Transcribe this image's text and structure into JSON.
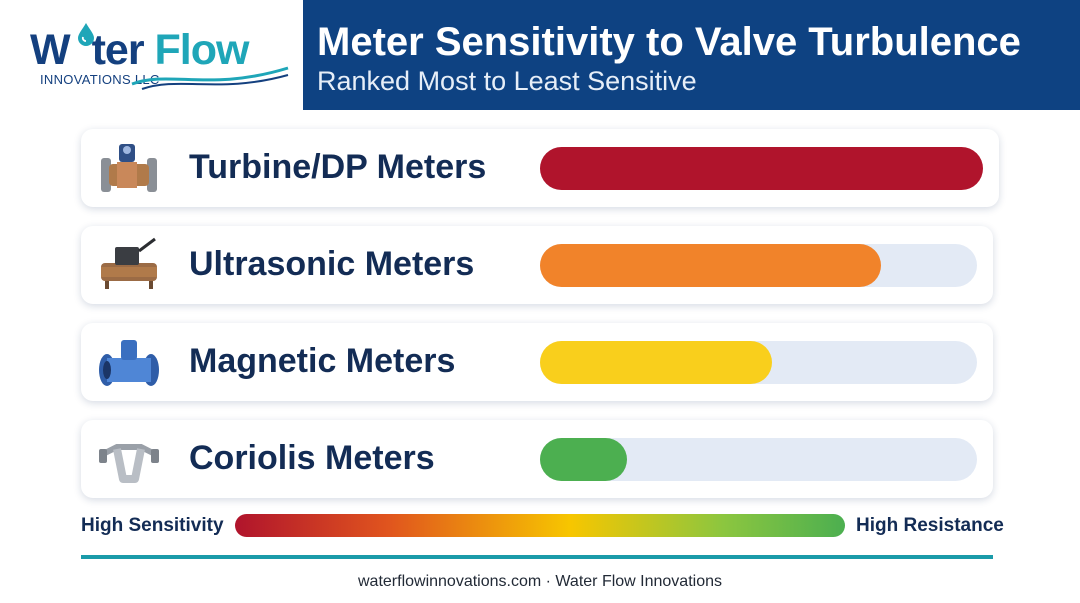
{
  "header": {
    "logo_word_1": "W",
    "logo_word_2": "ter",
    "logo_word_3": "Flow",
    "logo_sub": "INNOVATIONS LLC",
    "title": "Meter Sensitivity to Valve Turbulence",
    "subtitle": "Ranked Most to Least Sensitive"
  },
  "chart_data": {
    "type": "bar",
    "orientation": "horizontal",
    "title": "Meter Sensitivity to Valve Turbulence",
    "subtitle": "Ranked Most to Least Sensitive",
    "categories": [
      "Turbine/DP Meters",
      "Ultrasonic Meters",
      "Magnetic Meters",
      "Coriolis Meters"
    ],
    "values": [
      100,
      78,
      53,
      20
    ],
    "value_unit": "percent of track",
    "colors": [
      "#b0142c",
      "#f1832a",
      "#f9cf1c",
      "#4caf50"
    ],
    "icons": [
      "turbine-meter-icon",
      "ultrasonic-meter-icon",
      "magnetic-meter-icon",
      "coriolis-meter-icon"
    ],
    "ylim": [
      0,
      100
    ],
    "grid": false,
    "scale": {
      "left_label": "High Sensitivity",
      "right_label": "High Resistance"
    }
  },
  "footer": {
    "text": "waterflowinnovations.com · Water Flow Innovations"
  }
}
